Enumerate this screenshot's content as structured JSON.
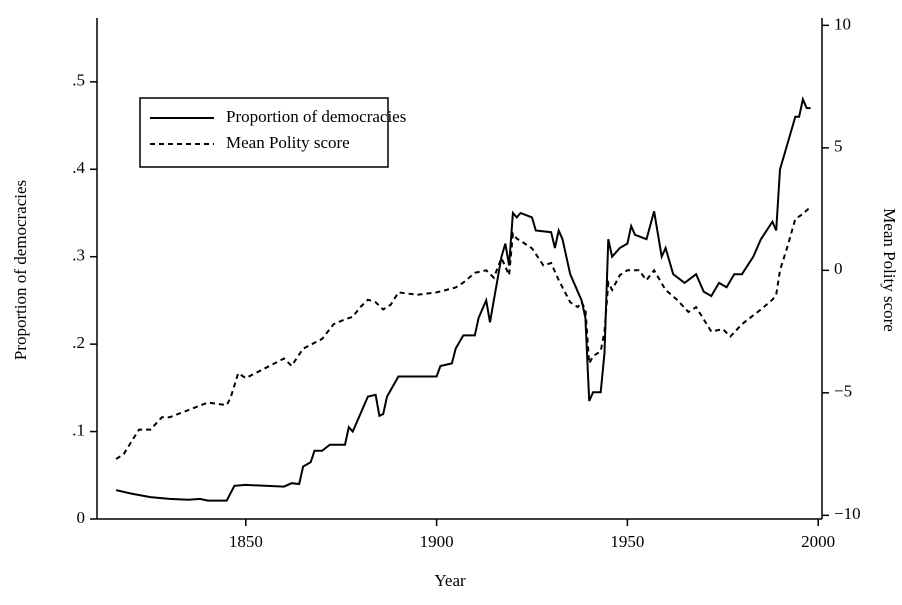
{
  "chart_data": {
    "type": "line",
    "x_label": "Year",
    "y_label": "Proportion of democracies",
    "y2_label": "Mean Polity score",
    "xlim": [
      1811,
      2001
    ],
    "xticks": [
      1850,
      1900,
      1950,
      2000
    ],
    "ylim": [
      0,
      0.573
    ],
    "yticks": [
      0,
      {
        "value": 0.1,
        "label": ".1"
      },
      {
        "value": 0.2,
        "label": ".2"
      },
      {
        "value": 0.3,
        "label": ".3"
      },
      {
        "value": 0.4,
        "label": ".4"
      },
      {
        "value": 0.5,
        "label": ".5"
      }
    ],
    "y2lim": [
      -10.15,
      10.3
    ],
    "y2ticks": [
      {
        "value": -10,
        "label": "−10"
      },
      {
        "value": -5,
        "label": "−5"
      },
      0,
      5,
      10
    ],
    "legend": "upper left",
    "series": [
      {
        "name": "Proportion of democracies",
        "color": "#000000",
        "line_style": "solid",
        "axis": "y",
        "x": [
          1816,
          1820,
          1825,
          1830,
          1835,
          1838,
          1840,
          1845,
          1847,
          1850,
          1855,
          1860,
          1862,
          1864,
          1865,
          1867,
          1868,
          1870,
          1872,
          1876,
          1877,
          1878,
          1880,
          1882,
          1884,
          1885,
          1886,
          1887,
          1890,
          1900,
          1901,
          1904,
          1905,
          1907,
          1910,
          1911,
          1913,
          1914,
          1915,
          1917,
          1918,
          1919,
          1920,
          1921,
          1922,
          1925,
          1926,
          1930,
          1931,
          1932,
          1933,
          1935,
          1937,
          1938,
          1939,
          1940,
          1941,
          1943,
          1944,
          1945,
          1946,
          1948,
          1950,
          1951,
          1952,
          1955,
          1957,
          1959,
          1960,
          1962,
          1965,
          1968,
          1970,
          1972,
          1974,
          1976,
          1978,
          1980,
          1983,
          1985,
          1988,
          1989,
          1990,
          1992,
          1994,
          1995,
          1996,
          1997,
          1998
        ],
        "values": [
          0.033,
          0.029,
          0.025,
          0.023,
          0.022,
          0.023,
          0.021,
          0.021,
          0.038,
          0.039,
          0.038,
          0.037,
          0.041,
          0.04,
          0.06,
          0.065,
          0.078,
          0.078,
          0.085,
          0.085,
          0.105,
          0.1,
          0.12,
          0.14,
          0.142,
          0.118,
          0.12,
          0.14,
          0.163,
          0.163,
          0.175,
          0.178,
          0.195,
          0.21,
          0.21,
          0.23,
          0.25,
          0.225,
          0.25,
          0.3,
          0.315,
          0.29,
          0.35,
          0.345,
          0.35,
          0.345,
          0.33,
          0.328,
          0.31,
          0.33,
          0.32,
          0.28,
          0.26,
          0.25,
          0.23,
          0.135,
          0.145,
          0.145,
          0.19,
          0.32,
          0.3,
          0.31,
          0.315,
          0.335,
          0.325,
          0.32,
          0.352,
          0.3,
          0.31,
          0.28,
          0.27,
          0.28,
          0.26,
          0.255,
          0.27,
          0.265,
          0.28,
          0.28,
          0.3,
          0.32,
          0.34,
          0.33,
          0.4,
          0.43,
          0.46,
          0.46,
          0.48,
          0.47,
          0.47
        ]
      },
      {
        "name": "Mean Polity score",
        "color": "#000000",
        "line_style": "dashed",
        "axis": "y2",
        "x": [
          1816,
          1818,
          1820,
          1822,
          1825,
          1828,
          1830,
          1835,
          1840,
          1845,
          1846,
          1848,
          1850,
          1855,
          1860,
          1862,
          1865,
          1870,
          1873,
          1876,
          1878,
          1880,
          1882,
          1884,
          1886,
          1888,
          1890,
          1895,
          1900,
          1905,
          1907,
          1910,
          1913,
          1915,
          1917,
          1919,
          1920,
          1921,
          1922,
          1925,
          1928,
          1930,
          1932,
          1935,
          1937,
          1938,
          1939,
          1940,
          1941,
          1943,
          1944,
          1945,
          1946,
          1948,
          1950,
          1953,
          1955,
          1957,
          1960,
          1963,
          1966,
          1968,
          1970,
          1972,
          1975,
          1977,
          1980,
          1985,
          1988,
          1989,
          1990,
          1992,
          1994,
          1996,
          1998
        ],
        "values": [
          -7.7,
          -7.5,
          -7,
          -6.5,
          -6.5,
          -6,
          -6,
          -5.7,
          -5.4,
          -5.5,
          -5.2,
          -4.2,
          -4.4,
          -4,
          -3.6,
          -3.9,
          -3.2,
          -2.8,
          -2.2,
          -2,
          -1.9,
          -1.5,
          -1.2,
          -1.3,
          -1.6,
          -1.4,
          -0.9,
          -1,
          -0.9,
          -0.7,
          -0.5,
          -0.1,
          0,
          -0.3,
          0.5,
          -0.2,
          1.5,
          1.3,
          1.2,
          0.9,
          0.2,
          0.3,
          -0.4,
          -1.3,
          -1.5,
          -1.3,
          -1.6,
          -3.8,
          -3.5,
          -3.3,
          -2.5,
          -0.5,
          -0.8,
          -0.2,
          0,
          0,
          -0.4,
          0,
          -0.8,
          -1.2,
          -1.7,
          -1.5,
          -2,
          -2.5,
          -2.4,
          -2.7,
          -2.2,
          -1.6,
          -1.2,
          -1,
          0,
          1,
          2.1,
          2.3,
          2.6
        ]
      }
    ]
  }
}
